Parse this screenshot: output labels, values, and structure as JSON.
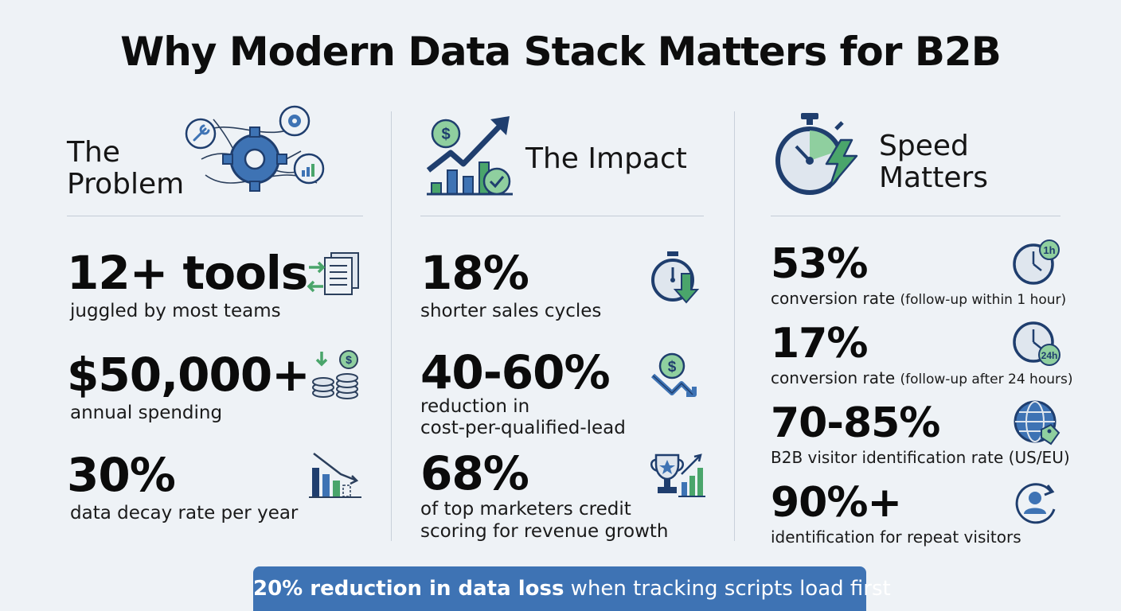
{
  "title": "Why Modern Data Stack Matters for B2B",
  "colors": {
    "navy": "#1f3e6e",
    "blue": "#3e73b4",
    "green": "#4aa56b",
    "light_green": "#8fcf9f",
    "banner_bg": "#3e73b4",
    "page_bg": "#eef2f6"
  },
  "columns": [
    {
      "title_line1": "The",
      "title_line2": "Problem",
      "header_icon": "tangled-gear-network-icon",
      "stats": [
        {
          "value": "12+ tools",
          "label": "juggled by most teams",
          "icon": "document-transfer-icon"
        },
        {
          "value": "$50,000+",
          "label": "annual spending",
          "icon": "coin-stack-icon"
        },
        {
          "value": "30%",
          "label": "data decay rate per year",
          "icon": "declining-bar-chart-icon"
        }
      ]
    },
    {
      "title": "The Impact",
      "header_icon": "growth-chart-dollar-icon",
      "stats": [
        {
          "value": "18%",
          "label": "shorter sales cycles",
          "icon": "stopwatch-down-arrow-icon"
        },
        {
          "value": "40-60%",
          "label_line1": "reduction in",
          "label_line2": "cost-per-qualified-lead",
          "icon": "dollar-down-arrow-icon"
        },
        {
          "value": "68%",
          "label_line1": "of top marketers credit",
          "label_line2": "scoring for revenue growth",
          "icon": "trophy-bar-chart-icon"
        }
      ]
    },
    {
      "title_line1": "Speed",
      "title_line2": "Matters",
      "header_icon": "stopwatch-lightning-icon",
      "stats": [
        {
          "value": "53%",
          "label_main": "conversion rate",
          "label_note": "(follow-up within 1 hour)",
          "icon": "clock-1h-icon",
          "badge": "1h"
        },
        {
          "value": "17%",
          "label_main": "conversion rate",
          "label_note": "(follow-up after 24 hours)",
          "icon": "clock-24h-icon",
          "badge": "24h"
        },
        {
          "value": "70-85%",
          "label": "B2B visitor identification rate (US/EU)",
          "icon": "globe-tag-icon"
        },
        {
          "value": "90%+",
          "label": "identification for repeat visitors",
          "icon": "repeat-user-icon"
        }
      ]
    }
  ],
  "banner": {
    "bold": "20% reduction in data loss",
    "rest": " when tracking scripts load first"
  }
}
